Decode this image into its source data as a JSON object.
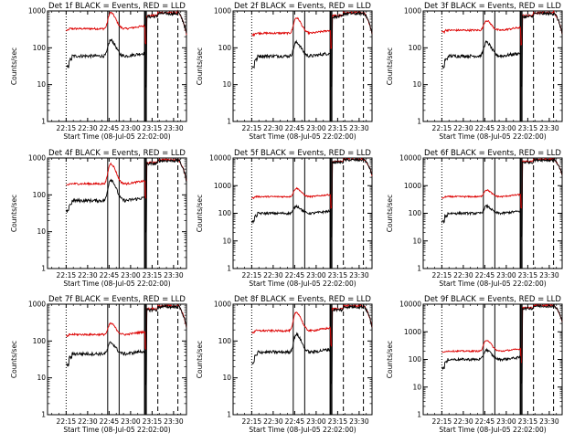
{
  "chart_data": {
    "type": "line",
    "layout": "3x3 grid of log-scale panels",
    "yscale": "log",
    "ylim": [
      1,
      1000
    ],
    "ylim_wide": [
      1,
      10000
    ],
    "y_tick_labels": [
      "1",
      "10",
      "100",
      "1000"
    ],
    "y_tick_labels_wide": [
      "1",
      "10",
      "100",
      "1000",
      "10000"
    ],
    "ylabel": "Counts/sec",
    "xlabel_prefix": "Start Time",
    "x_tick_labels": [
      "22:15",
      "22:30",
      "22:45",
      "23:00",
      "23:15",
      "23:30"
    ],
    "xlim": [
      "22:02",
      "23:39"
    ],
    "series_colors": {
      "events": "#000000",
      "lld": "#dd0000"
    },
    "vertical_markers": [
      {
        "time": "22:15",
        "style": "dotted"
      },
      {
        "time": "22:44",
        "style": "solid"
      },
      {
        "time": "22:52",
        "style": "solid"
      },
      {
        "time": "23:10",
        "style": "thick"
      },
      {
        "time": "23:11",
        "style": "solid"
      },
      {
        "time": "23:19",
        "style": "dashed"
      },
      {
        "time": "23:33",
        "style": "dashed"
      }
    ],
    "panels": [
      {
        "title": "Det 1f BLACK = Events, RED = LLD",
        "xlabel": "Start Time (08-Jul-05 22:02:00)",
        "ymax": 1000,
        "lld_base": 330,
        "events_base": 60,
        "flare_peak_red": 900,
        "flare_peak_black": 160
      },
      {
        "title": "Det 2f BLACK = Events, RED = LLD",
        "xlabel": "Start Time (08-Jul-05 22:02:00)",
        "ymax": 1000,
        "lld_base": 250,
        "events_base": 60,
        "flare_peak_red": 650,
        "flare_peak_black": 140
      },
      {
        "title": "Det 3f BLACK = Events, RED = LLD",
        "xlabel": "Start Time (08-Jul-05 22:02:00)",
        "ymax": 1000,
        "lld_base": 300,
        "events_base": 60,
        "flare_peak_red": 550,
        "flare_peak_black": 140
      },
      {
        "title": "Det 4f BLACK = Events, RED = LLD",
        "xlabel": "Start Time (08-Jul-05 22:02:00)",
        "ymax": 1000,
        "lld_base": 200,
        "events_base": 70,
        "flare_peak_red": 700,
        "flare_peak_black": 260
      },
      {
        "title": "Det 5f BLACK = Events, RED = LLD",
        "xlabel": "Start Time (08-Jul-05 22:02:00)",
        "ymax": 10000,
        "lld_base": 400,
        "events_base": 100,
        "flare_peak_red": 800,
        "flare_peak_black": 180
      },
      {
        "title": "Det 6f BLACK = Events, RED = LLD",
        "xlabel": "Start Time (08-Jul-05 22:02:00)",
        "ymax": 10000,
        "lld_base": 400,
        "events_base": 100,
        "flare_peak_red": 700,
        "flare_peak_black": 180
      },
      {
        "title": "Det 7f BLACK = Events, RED = LLD",
        "xlabel": "Start Time (08-Jul-05 22:02:00)",
        "ymax": 1000,
        "lld_base": 150,
        "events_base": 45,
        "flare_peak_red": 300,
        "flare_peak_black": 90
      },
      {
        "title": "Det 8f BLACK = Events, RED = LLD",
        "xlabel": "Start Time (08-Jul-05 22:02:00)",
        "ymax": 1000,
        "lld_base": 190,
        "events_base": 50,
        "flare_peak_red": 600,
        "flare_peak_black": 150
      },
      {
        "title": "Det 9f BLACK = Events, RED = LLD",
        "xlabel": "Start Time (08-Jul-05 22:02:00)",
        "ymax": 10000,
        "lld_base": 200,
        "events_base": 100,
        "flare_peak_red": 500,
        "flare_peak_black": 220
      }
    ]
  }
}
